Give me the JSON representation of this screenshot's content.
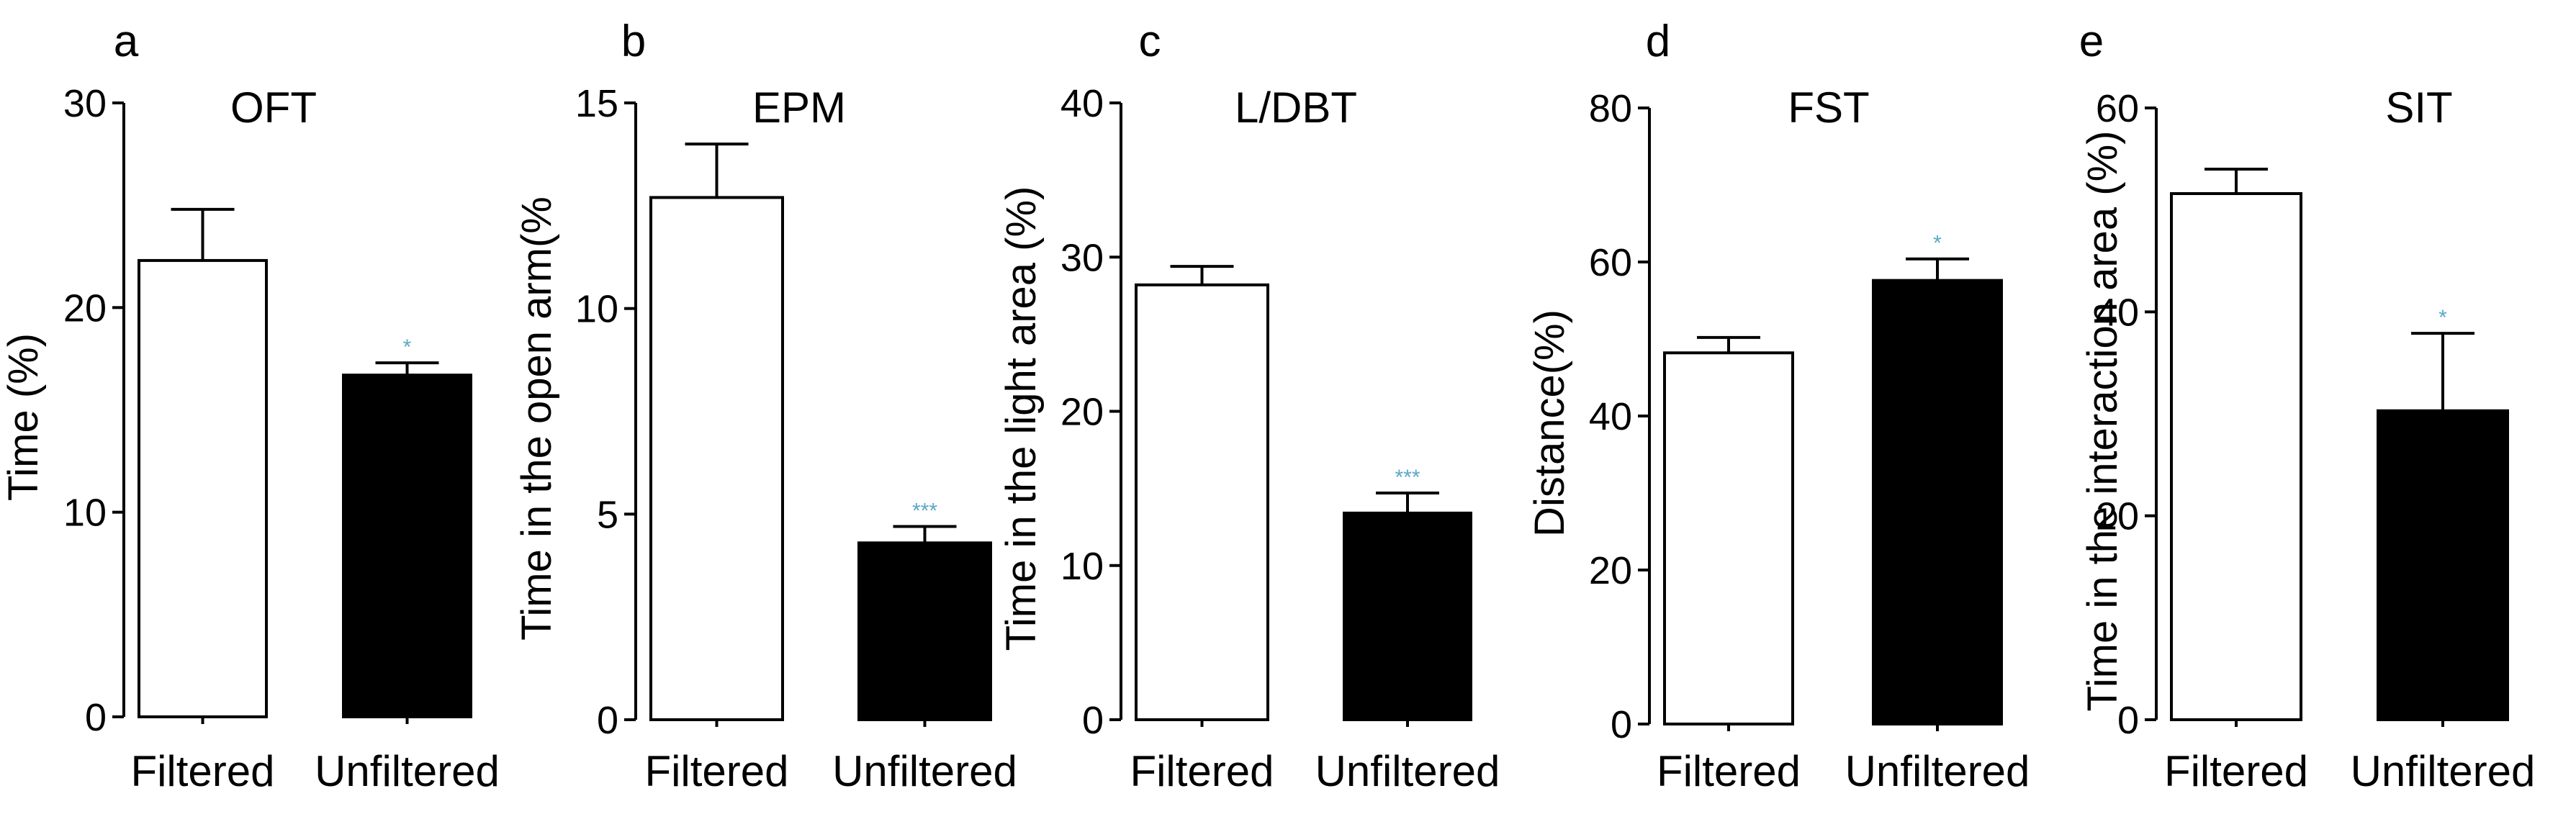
{
  "colors": {
    "filtered_bar": "#ffffff",
    "unfiltered_bar": "#000000",
    "significance": "#5aa9c8",
    "axis": "#000000"
  },
  "chart_data": [
    {
      "type": "bar",
      "panel": "a",
      "title": "OFT",
      "ylabel": "Time (%)",
      "ylim": [
        0,
        30
      ],
      "yticks": [
        "0",
        "10",
        "20",
        "30"
      ],
      "categories": [
        "Filtered",
        "Unfiltered"
      ],
      "values": [
        22.3,
        16.7
      ],
      "errors": [
        2.5,
        0.6
      ],
      "significance": [
        "",
        "*"
      ]
    },
    {
      "type": "bar",
      "panel": "b",
      "title": "EPM",
      "ylabel": "Time in the open arm(%",
      "ylim": [
        0,
        15
      ],
      "yticks": [
        "0",
        "5",
        "10",
        "15"
      ],
      "categories": [
        "Filtered",
        "Unfiltered"
      ],
      "values": [
        12.7,
        4.3
      ],
      "errors": [
        1.3,
        0.4
      ],
      "significance": [
        "",
        "***"
      ]
    },
    {
      "type": "bar",
      "panel": "c",
      "title": "L/DBT",
      "ylabel": "Time in the light area (%)",
      "ylim": [
        0,
        40
      ],
      "yticks": [
        "0",
        "10",
        "20",
        "30",
        "40"
      ],
      "categories": [
        "Filtered",
        "Unfiltered"
      ],
      "values": [
        28.2,
        13.4
      ],
      "errors": [
        1.2,
        1.3
      ],
      "significance": [
        "",
        "***"
      ]
    },
    {
      "type": "bar",
      "panel": "d",
      "title": "FST",
      "ylabel": "Distance(%)",
      "ylim": [
        0,
        80
      ],
      "yticks": [
        "0",
        "20",
        "40",
        "60",
        "80"
      ],
      "categories": [
        "Filtered",
        "Unfiltered"
      ],
      "values": [
        48.2,
        57.6
      ],
      "errors": [
        2.0,
        2.8
      ],
      "significance": [
        "",
        "*"
      ]
    },
    {
      "type": "bar",
      "panel": "e",
      "title": "SIT",
      "ylabel": "Time in the interaction area (%)",
      "ylim": [
        0,
        60
      ],
      "yticks": [
        "0",
        "20",
        "40",
        "60"
      ],
      "categories": [
        "Filtered",
        "Unfiltered"
      ],
      "values": [
        51.6,
        30.3
      ],
      "errors": [
        2.4,
        7.6
      ],
      "significance": [
        "",
        "*"
      ]
    }
  ]
}
